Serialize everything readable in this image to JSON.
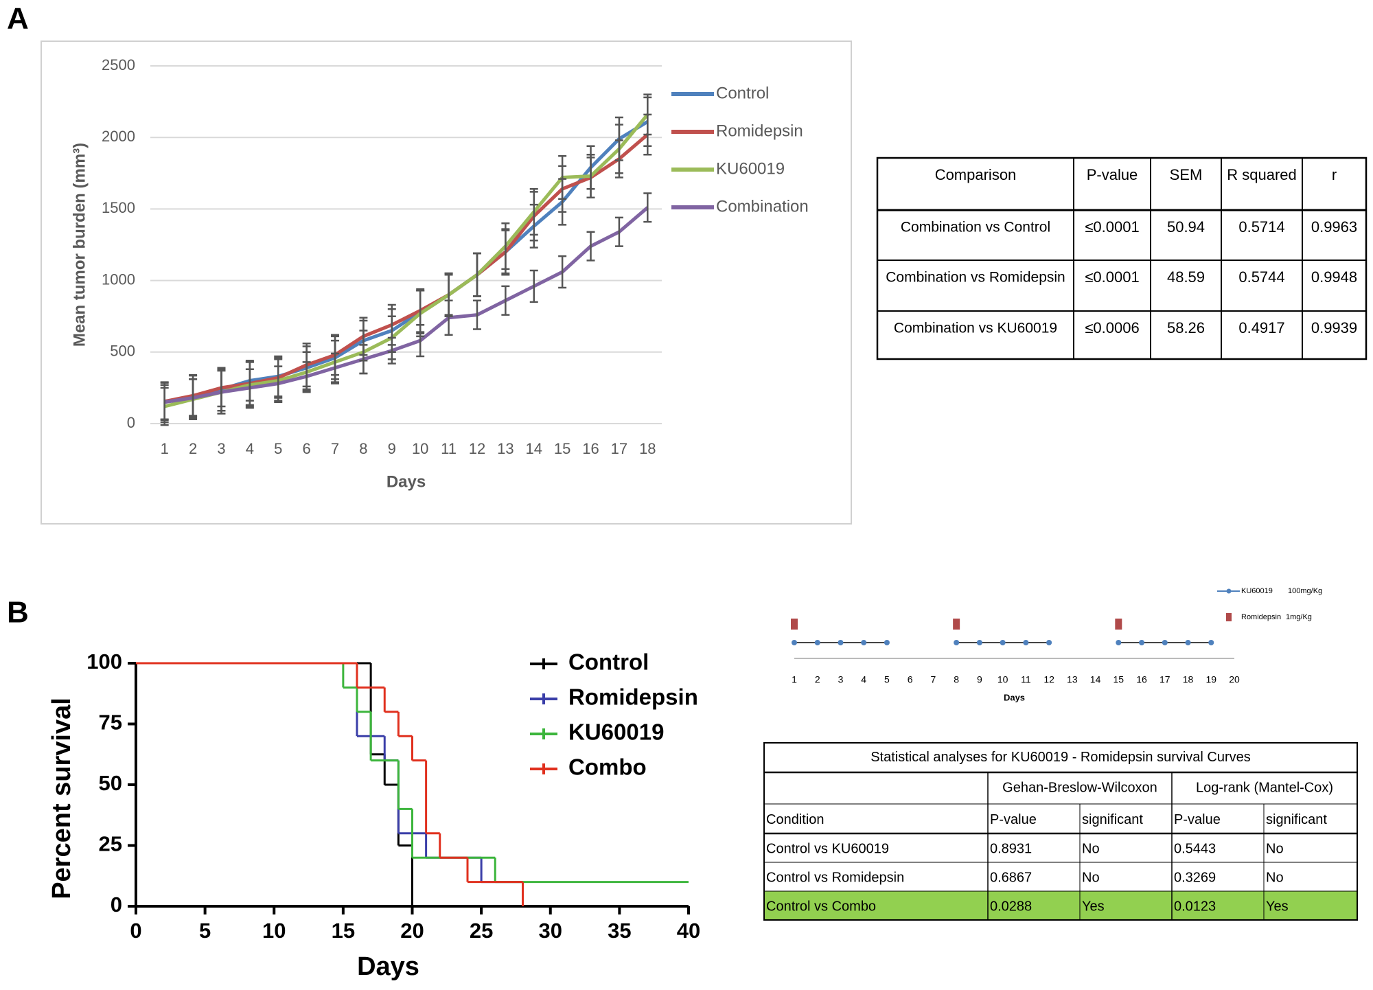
{
  "panel_labels": [
    "A",
    "B"
  ],
  "chart_data": [
    {
      "type": "line",
      "x_label": "Days",
      "y_label": "Mean tumor burden (mm³)",
      "categories": [
        1,
        2,
        3,
        4,
        5,
        6,
        7,
        8,
        9,
        10,
        11,
        12,
        13,
        14,
        15,
        16,
        17,
        18
      ],
      "ylim": [
        0,
        2500
      ],
      "yticks": [
        0,
        500,
        1000,
        1500,
        2000,
        2500
      ],
      "grid": true,
      "legend": "right",
      "series": [
        {
          "name": "Control",
          "color": "#4f81bd",
          "values": [
            150,
            190,
            240,
            300,
            330,
            390,
            460,
            580,
            650,
            780,
            900,
            1040,
            1200,
            1380,
            1550,
            1790,
            1990,
            2110
          ],
          "errors": [
            140,
            150,
            150,
            140,
            140,
            150,
            150,
            140,
            150,
            150,
            140,
            150,
            160,
            150,
            160,
            150,
            150,
            170
          ]
        },
        {
          "name": "Romidepsin",
          "color": "#c0504d",
          "values": [
            155,
            195,
            250,
            280,
            320,
            410,
            480,
            610,
            690,
            790,
            900,
            1040,
            1200,
            1450,
            1640,
            1720,
            1850,
            2020
          ],
          "errors": [
            130,
            140,
            130,
            150,
            140,
            150,
            140,
            130,
            140,
            150,
            150,
            150,
            150,
            170,
            160,
            140,
            130,
            140
          ]
        },
        {
          "name": "KU60019",
          "color": "#9bbb59",
          "values": [
            120,
            170,
            220,
            270,
            300,
            360,
            430,
            500,
            600,
            770,
            900,
            1040,
            1240,
            1480,
            1720,
            1730,
            1920,
            2160
          ],
          "errors": [
            130,
            140,
            150,
            160,
            150,
            140,
            150,
            150,
            150,
            160,
            150,
            150,
            160,
            160,
            150,
            150,
            170,
            140
          ]
        },
        {
          "name": "Combination",
          "color": "#8064a2",
          "values": [
            150,
            180,
            220,
            250,
            280,
            330,
            390,
            450,
            510,
            580,
            740,
            760,
            860,
            960,
            1060,
            1240,
            1340,
            1510
          ],
          "errors": [
            120,
            130,
            150,
            130,
            120,
            100,
            100,
            100,
            90,
            110,
            120,
            100,
            100,
            110,
            110,
            100,
            100,
            100
          ]
        }
      ]
    },
    {
      "type": "step",
      "x_label": "Days",
      "y_label": "Percent survival",
      "xlim": [
        0,
        40
      ],
      "xticks": [
        0,
        5,
        10,
        15,
        20,
        25,
        30,
        35,
        40
      ],
      "ylim": [
        0,
        100
      ],
      "yticks": [
        0,
        25,
        50,
        75,
        100
      ],
      "legend": "upper right",
      "series": [
        {
          "name": "Control",
          "color": "#000000",
          "x": [
            0,
            17,
            18,
            19,
            20
          ],
          "values": [
            100,
            62.5,
            50,
            25,
            0
          ]
        },
        {
          "name": "Romidepsin",
          "color": "#3a3ea8",
          "x": [
            0,
            16,
            18,
            19,
            21,
            25,
            28
          ],
          "values": [
            100,
            70,
            60,
            30,
            20,
            10,
            0
          ]
        },
        {
          "name": "KU60019",
          "color": "#3cb53c",
          "x": [
            0,
            15,
            16,
            17,
            19,
            20,
            26,
            40
          ],
          "values": [
            100,
            90,
            80,
            60,
            40,
            20,
            10,
            10
          ]
        },
        {
          "name": "Combo",
          "color": "#e0301e",
          "x": [
            0,
            16,
            18,
            19,
            20,
            21,
            22,
            24,
            28
          ],
          "values": [
            100,
            90,
            80,
            70,
            60,
            30,
            20,
            10,
            0
          ]
        }
      ]
    },
    {
      "type": "schedule",
      "x_label": "Days",
      "xlim": [
        1,
        20
      ],
      "xticks": [
        1,
        2,
        3,
        4,
        5,
        6,
        7,
        8,
        9,
        10,
        11,
        12,
        13,
        14,
        15,
        16,
        17,
        18,
        19,
        20
      ],
      "series": [
        {
          "name": "KU60019",
          "dose": "100mg/Kg",
          "color": "#4f81bd",
          "x": [
            1,
            2,
            3,
            4,
            5,
            8,
            9,
            10,
            11,
            12,
            15,
            16,
            17,
            18,
            19
          ]
        },
        {
          "name": "Romidepsin",
          "dose": "1mg/Kg",
          "color": "#b04a4a",
          "x": [
            1,
            8,
            15
          ]
        }
      ]
    }
  ],
  "table_a": {
    "header": [
      "Comparison",
      "P-value",
      "SEM",
      "R squared",
      "r"
    ],
    "rows": [
      [
        "Combination vs Control",
        "≤0.0001",
        "50.94",
        "0.5714",
        "0.9963"
      ],
      [
        "Combination vs Romidepsin",
        "≤0.0001",
        "48.59",
        "0.5744",
        "0.9948"
      ],
      [
        "Combination vs KU60019",
        "≤0.0006",
        "58.26",
        "0.4917",
        "0.9939"
      ]
    ]
  },
  "table_b": {
    "title": "Statistical analyses for KU60019 - Romidepsin survival Curves",
    "groups": [
      "Gehan-Breslow-Wilcoxon",
      "Log-rank (Mantel-Cox)"
    ],
    "header": [
      "Condition",
      "P-value",
      "significant",
      "P-value",
      "significant"
    ],
    "rows": [
      [
        "Control vs KU60019",
        "0.8931",
        "No",
        "0.5443",
        "No"
      ],
      [
        "Control vs Romidepsin",
        "0.6867",
        "No",
        "0.3269",
        "No"
      ],
      [
        "Control vs Combo",
        "0.0288",
        "Yes",
        "0.0123",
        "Yes"
      ]
    ],
    "highlight_row": 2,
    "highlight_color": "#92d050"
  }
}
